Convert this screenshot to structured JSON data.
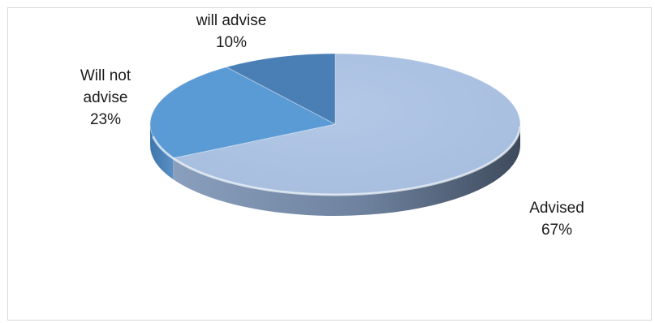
{
  "chart_data": {
    "type": "pie",
    "style": "3d",
    "categories": [
      "Advised",
      "Will not advise",
      "will advise"
    ],
    "values": [
      67,
      23,
      10
    ],
    "value_labels": [
      "67%",
      "23%",
      "10%"
    ],
    "label_lines": [
      [
        "Advised",
        "67%"
      ],
      [
        "Will not",
        "advise",
        "23%"
      ],
      [
        "will advise",
        "10%"
      ]
    ],
    "colors": {
      "Advised": "#adc4e3",
      "Will not advise": "#5b9bd5",
      "will advise": "#4a7fb5"
    },
    "legend": "none",
    "title": ""
  }
}
